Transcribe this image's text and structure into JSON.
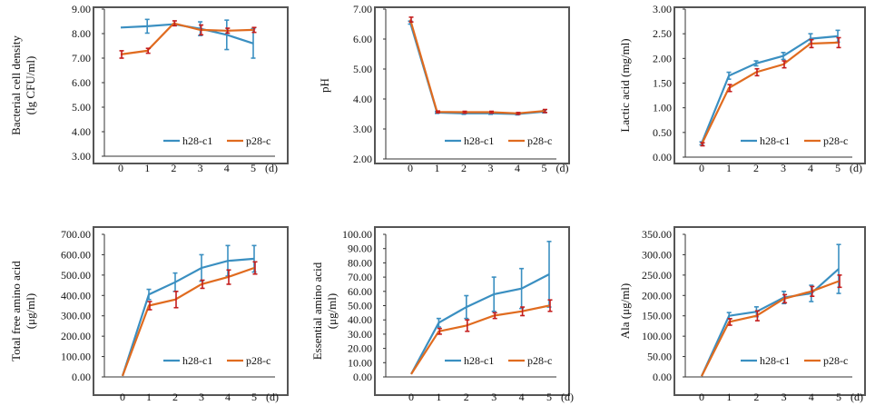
{
  "colors": {
    "h28": "#3a8fc1",
    "p28": "#e06b1f",
    "p28_err": "#c41d1d",
    "axis": "#333333",
    "frame": "#555555"
  },
  "chart_data": [
    {
      "type": "line",
      "ylabel_lines": [
        "Bacterial cell density",
        "(lg CFU/ml)"
      ],
      "x": [
        0,
        1,
        2,
        3,
        4,
        5
      ],
      "x_unit": "(d)",
      "ylim": [
        3,
        9
      ],
      "yticks": [
        "3.00",
        "4.00",
        "5.00",
        "6.00",
        "7.00",
        "8.00",
        "9.00"
      ],
      "legend": [
        "h28-c1",
        "p28-c"
      ],
      "series": [
        {
          "name": "h28-c1",
          "values": [
            8.25,
            8.3,
            8.38,
            8.2,
            7.95,
            7.6
          ],
          "err": [
            0,
            0.28,
            0,
            0.28,
            0.6,
            0.6
          ]
        },
        {
          "name": "p28-c",
          "values": [
            7.15,
            7.3,
            8.42,
            8.15,
            8.12,
            8.15
          ],
          "err": [
            0.15,
            0.1,
            0.1,
            0.2,
            0.1,
            0.1
          ]
        }
      ]
    },
    {
      "type": "line",
      "ylabel_lines": [
        "pH"
      ],
      "x": [
        0,
        1,
        2,
        3,
        4,
        5
      ],
      "x_unit": "(d)",
      "ylim": [
        2,
        7
      ],
      "yticks": [
        "2.00",
        "3.00",
        "4.00",
        "5.00",
        "6.00",
        "7.00"
      ],
      "legend": [
        "h28-c1",
        "p28-c"
      ],
      "series": [
        {
          "name": "h28-c1",
          "values": [
            6.55,
            3.55,
            3.52,
            3.52,
            3.5,
            3.58
          ],
          "err": [
            0.05,
            0.03,
            0.03,
            0.03,
            0.03,
            0.04
          ]
        },
        {
          "name": "p28-c",
          "values": [
            6.65,
            3.57,
            3.56,
            3.56,
            3.52,
            3.6
          ],
          "err": [
            0.08,
            0.03,
            0.03,
            0.03,
            0.03,
            0.05
          ]
        }
      ]
    },
    {
      "type": "line",
      "ylabel_lines": [
        "Lactic acid (mg/ml)"
      ],
      "x": [
        0,
        1,
        2,
        3,
        4,
        5
      ],
      "x_unit": "(d)",
      "ylim": [
        0,
        3
      ],
      "yticks": [
        "0.00",
        "0.50",
        "1.00",
        "1.50",
        "2.00",
        "2.50",
        "3.00"
      ],
      "legend": [
        "h28-c1",
        "p28-c"
      ],
      "series": [
        {
          "name": "h28-c1",
          "values": [
            0.28,
            1.65,
            1.9,
            2.05,
            2.4,
            2.45
          ],
          "err": [
            0.03,
            0.07,
            0.05,
            0.07,
            0.1,
            0.12
          ]
        },
        {
          "name": "p28-c",
          "values": [
            0.26,
            1.4,
            1.72,
            1.88,
            2.3,
            2.32
          ],
          "err": [
            0.03,
            0.07,
            0.07,
            0.07,
            0.08,
            0.1
          ]
        }
      ]
    },
    {
      "type": "line",
      "ylabel_lines": [
        "Total free amino acid",
        "(μg/ml)"
      ],
      "x": [
        0,
        1,
        2,
        3,
        4,
        5
      ],
      "x_unit": "(d)",
      "ylim": [
        0,
        700
      ],
      "yticks": [
        "0.00",
        "100.00",
        "200.00",
        "300.00",
        "400.00",
        "500.00",
        "600.00",
        "700.00"
      ],
      "legend": [
        "h28-c1",
        "p28-c"
      ],
      "series": [
        {
          "name": "h28-c1",
          "values": [
            5,
            405,
            465,
            535,
            570,
            580
          ],
          "err": [
            0,
            25,
            45,
            65,
            75,
            65
          ]
        },
        {
          "name": "p28-c",
          "values": [
            5,
            350,
            380,
            455,
            490,
            535
          ],
          "err": [
            0,
            20,
            40,
            20,
            35,
            30
          ]
        }
      ]
    },
    {
      "type": "line",
      "ylabel_lines": [
        "Essential amino acid",
        "(μg/ml)"
      ],
      "x": [
        0,
        1,
        2,
        3,
        4,
        5
      ],
      "x_unit": "(d)",
      "ylim": [
        0,
        100
      ],
      "yticks": [
        "0.00",
        "10.00",
        "20.00",
        "30.00",
        "40.00",
        "50.00",
        "60.00",
        "70.00",
        "80.00",
        "90.00",
        "100.00"
      ],
      "legend": [
        "h28-c1",
        "p28-c"
      ],
      "series": [
        {
          "name": "h28-c1",
          "values": [
            2,
            38,
            49,
            58,
            62,
            72
          ],
          "err": [
            0,
            3,
            8,
            12,
            14,
            23
          ]
        },
        {
          "name": "p28-c",
          "values": [
            2,
            32,
            36,
            43,
            46,
            50
          ],
          "err": [
            0,
            2,
            4,
            2,
            3,
            4
          ]
        }
      ]
    },
    {
      "type": "line",
      "ylabel_lines": [
        "Ala (μg/ml)"
      ],
      "x": [
        0,
        1,
        2,
        3,
        4,
        5
      ],
      "x_unit": "(d)",
      "ylim": [
        0,
        350
      ],
      "yticks": [
        "0.00",
        "50.00",
        "100.00",
        "150.00",
        "200.00",
        "250.00",
        "300.00",
        "350.00"
      ],
      "legend": [
        "h28-c1",
        "p28-c"
      ],
      "series": [
        {
          "name": "h28-c1",
          "values": [
            2,
            150,
            160,
            195,
            205,
            265
          ],
          "err": [
            0,
            8,
            12,
            15,
            20,
            60
          ]
        },
        {
          "name": "p28-c",
          "values": [
            2,
            135,
            150,
            192,
            210,
            235
          ],
          "err": [
            0,
            8,
            12,
            10,
            12,
            15
          ]
        }
      ]
    }
  ]
}
